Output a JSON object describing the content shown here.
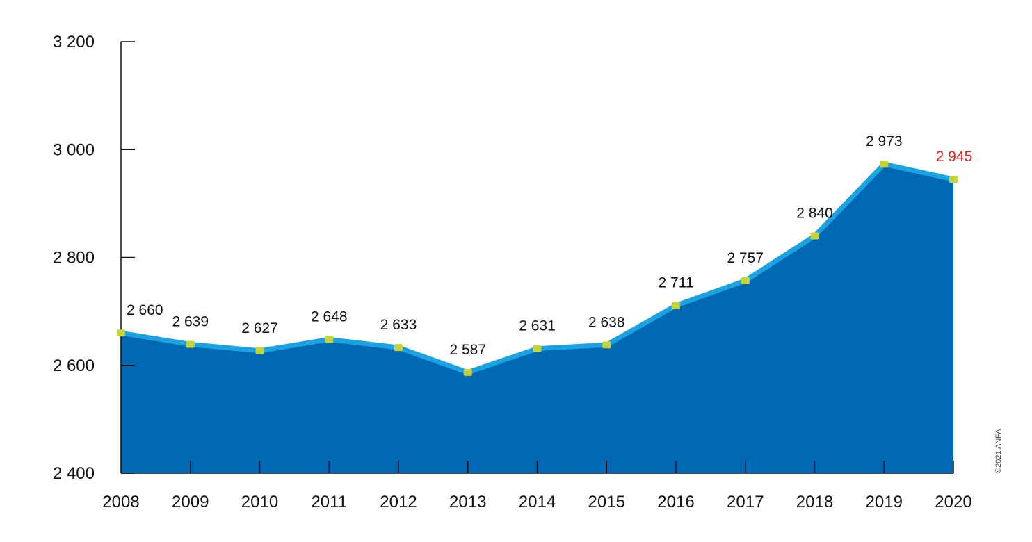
{
  "chart_data": {
    "type": "area",
    "title": "",
    "xlabel": "",
    "ylabel": "",
    "x": [
      "2008",
      "2009",
      "2010",
      "2011",
      "2012",
      "2013",
      "2014",
      "2015",
      "2016",
      "2017",
      "2018",
      "2019",
      "2020"
    ],
    "series": [
      {
        "values": [
          2660,
          2639,
          2627,
          2648,
          2633,
          2587,
          2631,
          2638,
          2711,
          2757,
          2840,
          2973,
          2945
        ]
      }
    ],
    "data_labels": [
      "2 660",
      "2 639",
      "2 627",
      "2 648",
      "2 633",
      "2 587",
      "2 631",
      "2 638",
      "2 711",
      "2 757",
      "2 840",
      "2 973",
      "2 945"
    ],
    "ylim": [
      2400,
      3200
    ],
    "yticks": [
      2400,
      2600,
      2800,
      3000,
      3200
    ],
    "ytick_labels": [
      "2 400",
      "2 600",
      "2 800",
      "3 000",
      "3 200"
    ],
    "grid": false,
    "legend": "none",
    "highlight_last_label": true
  },
  "colors": {
    "area_fill": "#0068b4",
    "line": "#1aa3e0",
    "marker": "#c6d33a",
    "highlight_label": "#d9261c",
    "axis": "#111111"
  },
  "copyright": "©2021 ANFA"
}
